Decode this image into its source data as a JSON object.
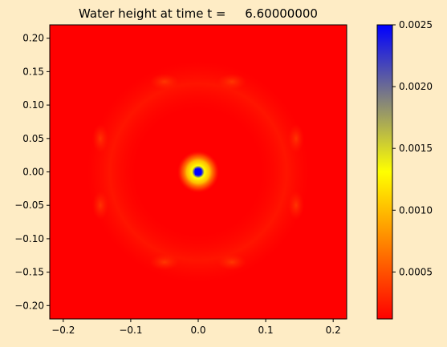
{
  "chart_data": {
    "type": "heatmap",
    "title": "Water height at time t =     6.60000000",
    "xlabel": "",
    "ylabel": "",
    "xlim": [
      -0.22,
      0.22
    ],
    "ylim": [
      -0.22,
      0.22
    ],
    "xticks": [
      "−0.2",
      "−0.1",
      "0.0",
      "0.1",
      "0.2"
    ],
    "xtick_values": [
      -0.2,
      -0.1,
      0.0,
      0.1,
      0.2
    ],
    "yticks": [
      "0.20",
      "0.15",
      "0.10",
      "0.05",
      "0.00",
      "−0.05",
      "−0.10",
      "−0.15",
      "−0.20"
    ],
    "ytick_values": [
      0.2,
      0.15,
      0.1,
      0.05,
      0.0,
      -0.05,
      -0.1,
      -0.15,
      -0.2
    ],
    "colorbar": {
      "range": [
        0.00012,
        0.0025
      ],
      "ticks": [
        "0.0005",
        "0.0010",
        "0.0015",
        "0.0020",
        "0.0025"
      ],
      "tick_values": [
        0.0005,
        0.001,
        0.0015,
        0.002,
        0.0025
      ],
      "colors": [
        "#ff0000",
        "#ffff00",
        "#0000ff"
      ]
    },
    "field": {
      "background_value": 0.00015,
      "peak_center": [
        0.0,
        0.0
      ],
      "peak_value": 0.0025,
      "ring_features": [
        {
          "x": -0.05,
          "y": 0.135
        },
        {
          "x": 0.05,
          "y": 0.135
        },
        {
          "x": -0.05,
          "y": -0.135
        },
        {
          "x": 0.05,
          "y": -0.135
        },
        {
          "x": -0.145,
          "y": 0.05
        },
        {
          "x": 0.145,
          "y": 0.05
        },
        {
          "x": -0.145,
          "y": -0.05
        },
        {
          "x": 0.145,
          "y": -0.05
        }
      ]
    }
  }
}
